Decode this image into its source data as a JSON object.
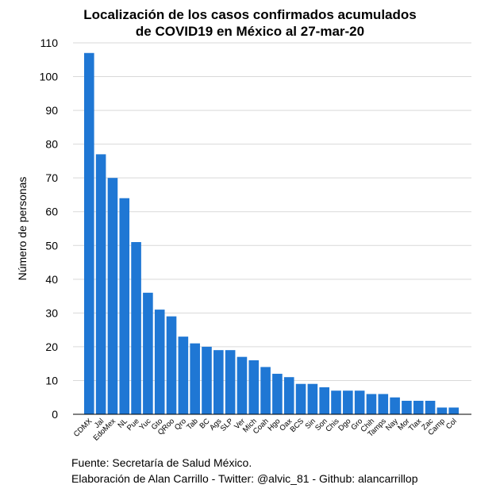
{
  "chart_data": {
    "type": "bar",
    "title_lines": [
      "Localización de los casos confirmados acumulados",
      "de COVID19 en México al 27-mar-20"
    ],
    "xlabel": "",
    "ylabel": "Número de personas",
    "ylim": [
      0,
      110
    ],
    "yticks": [
      0,
      10,
      20,
      30,
      40,
      50,
      60,
      70,
      80,
      90,
      100,
      110
    ],
    "grid": true,
    "bar_color": "#1f77d4",
    "categories": [
      "CDMX",
      "Jal",
      "EdoMex",
      "NL",
      "Pue",
      "Yuc",
      "Gto",
      "QRoo",
      "Qro",
      "Tab",
      "BC",
      "Ags",
      "SLP",
      "Ver",
      "Mich",
      "Coah",
      "Hgo",
      "Oax",
      "BCS",
      "Sin",
      "Son",
      "Chis",
      "Dgo",
      "Gro",
      "Chih",
      "Tamps",
      "Nay",
      "Mor",
      "Tlax",
      "Zac",
      "Camp",
      "Col"
    ],
    "values": [
      107,
      77,
      70,
      64,
      51,
      36,
      31,
      29,
      23,
      21,
      20,
      19,
      19,
      17,
      16,
      14,
      12,
      11,
      9,
      9,
      8,
      7,
      7,
      7,
      6,
      6,
      5,
      4,
      4,
      4,
      2,
      2
    ]
  },
  "caption": {
    "line1": "Fuente: Secretaría de Salud México.",
    "line2": "Elaboración de Alan Carrillo - Twitter: @alvic_81 - Github: alancarrillop"
  }
}
